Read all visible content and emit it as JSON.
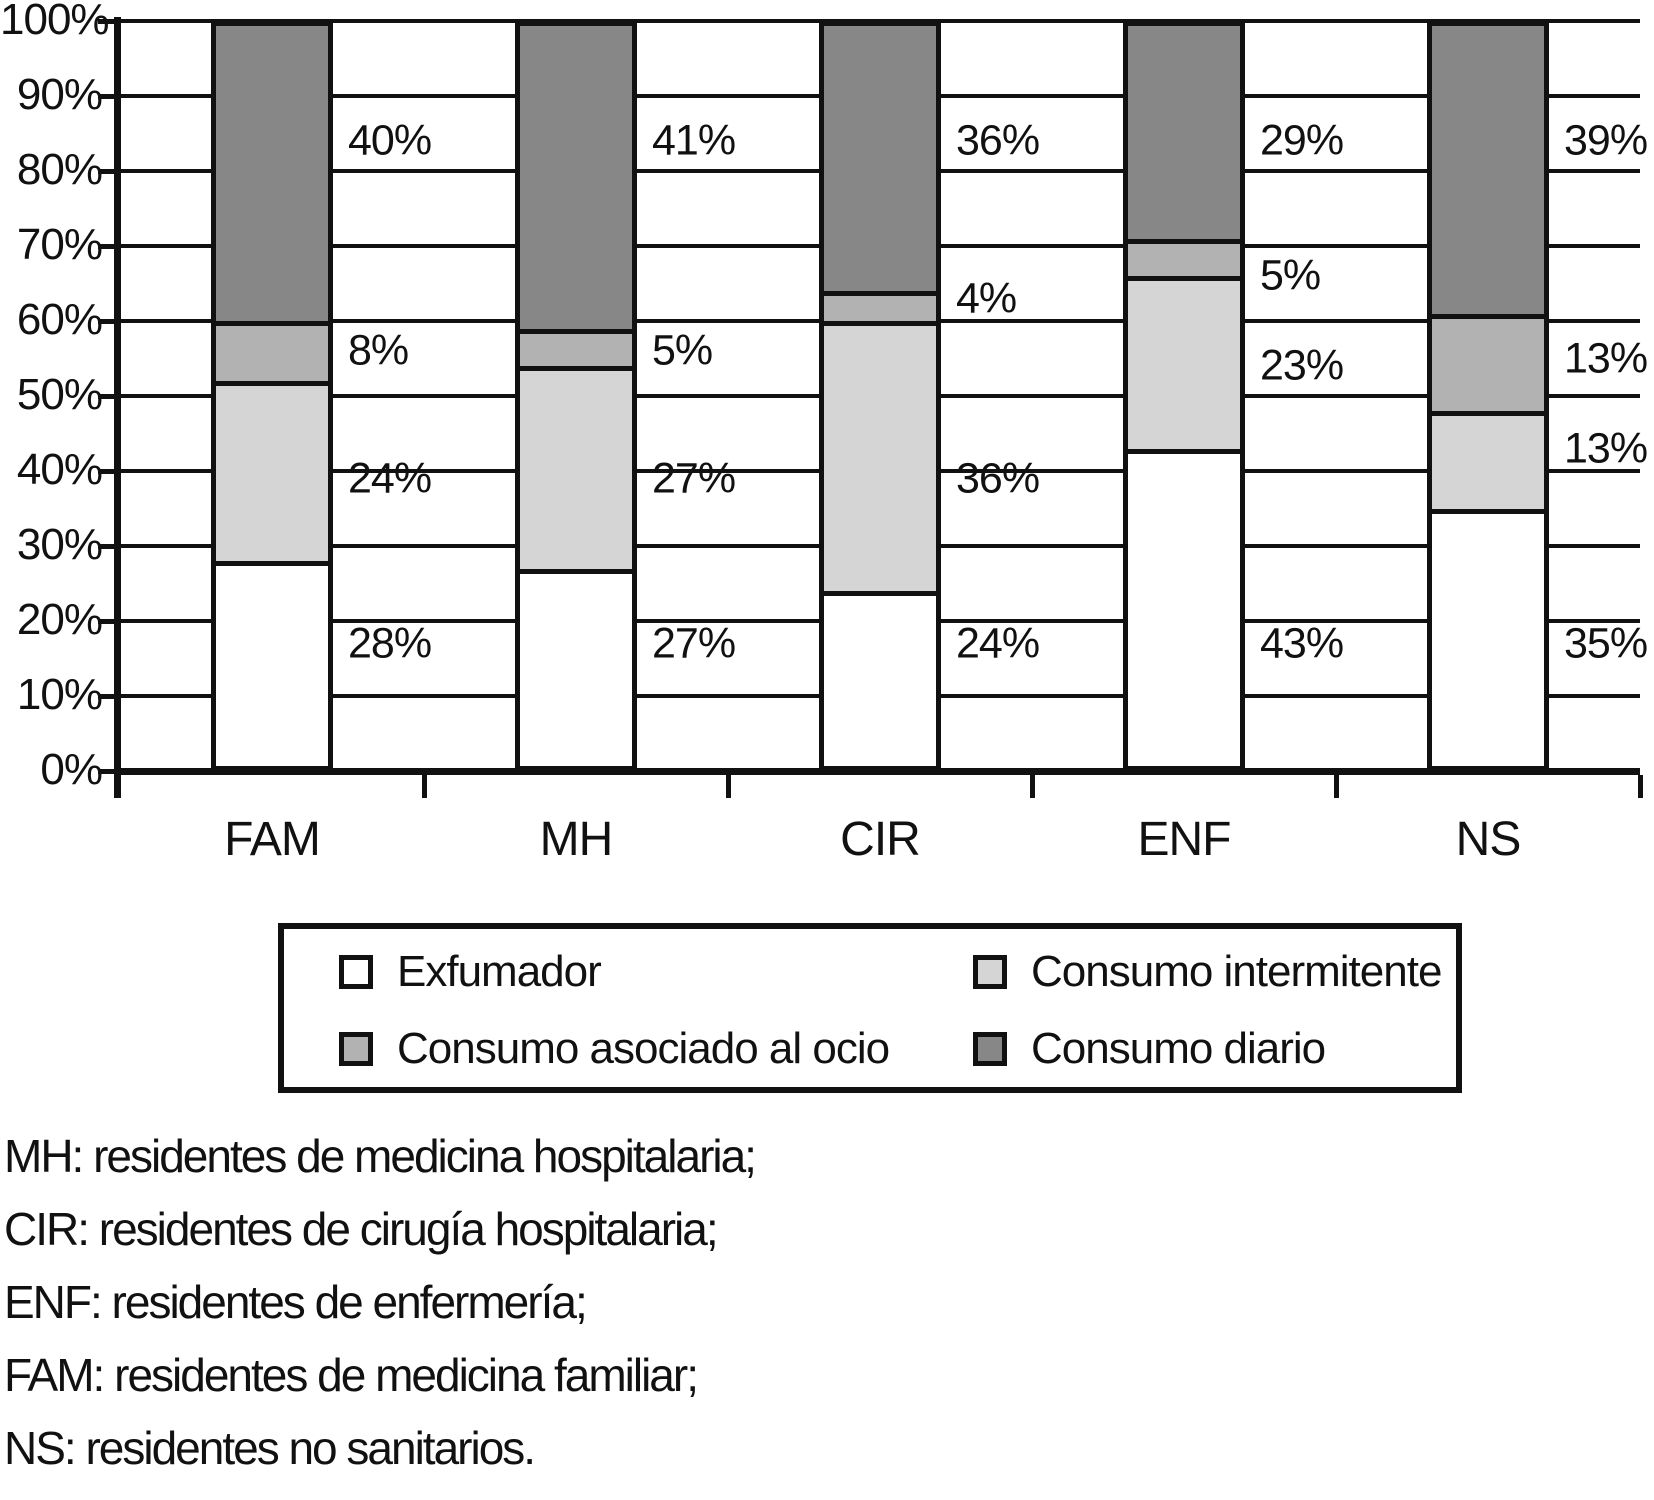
{
  "chart_data": {
    "type": "bar",
    "variant": "stacked-100-percent",
    "title": "",
    "xlabel": "",
    "ylabel": "",
    "grid": true,
    "legend_position": "bottom",
    "categories": [
      "FAM",
      "MH",
      "CIR",
      "ENF",
      "NS"
    ],
    "series": [
      {
        "key": "exfumador",
        "name": "Exfumador",
        "color": "#ffffff",
        "values": [
          28,
          27,
          24,
          43,
          35
        ]
      },
      {
        "key": "consumo-intermitente",
        "name": "Consumo intermitente",
        "color": "#d5d5d5",
        "values": [
          24,
          27,
          36,
          23,
          13
        ]
      },
      {
        "key": "consumo-asociado-al-ocio",
        "name": "Consumo asociado al ocio",
        "color": "#b2b2b2",
        "values": [
          8,
          5,
          4,
          5,
          13
        ]
      },
      {
        "key": "consumo-diario",
        "name": "Consumo diario",
        "color": "#878787",
        "values": [
          40,
          41,
          36,
          29,
          39
        ]
      }
    ],
    "y_axis": {
      "min": 0,
      "max": 100,
      "step": 10,
      "tick_labels": [
        "0%",
        "10%",
        "20%",
        "30%",
        "40%",
        "50%",
        "60%",
        "70%",
        "80%",
        "90%",
        "100%"
      ]
    },
    "data_labels": {
      "FAM": [
        {
          "text": "40%",
          "y": 84
        },
        {
          "text": "8%",
          "y": 56
        },
        {
          "text": "24%",
          "y": 39
        },
        {
          "text": "28%",
          "y": 17
        }
      ],
      "MH": [
        {
          "text": "41%",
          "y": 84
        },
        {
          "text": "5%",
          "y": 56
        },
        {
          "text": "27%",
          "y": 39
        },
        {
          "text": "27%",
          "y": 17
        }
      ],
      "CIR": [
        {
          "text": "36%",
          "y": 84
        },
        {
          "text": "4%",
          "y": 63
        },
        {
          "text": "36%",
          "y": 39
        },
        {
          "text": "24%",
          "y": 17
        }
      ],
      "ENF": [
        {
          "text": "29%",
          "y": 84
        },
        {
          "text": "5%",
          "y": 66
        },
        {
          "text": "23%",
          "y": 54
        },
        {
          "text": "43%",
          "y": 17
        }
      ],
      "NS": [
        {
          "text": "39%",
          "y": 84
        },
        {
          "text": "13%",
          "y": 55
        },
        {
          "text": "13%",
          "y": 43
        },
        {
          "text": "35%",
          "y": 17
        }
      ]
    }
  },
  "legend": {
    "entries": [
      {
        "label": "Exfumador",
        "color": "#ffffff"
      },
      {
        "label": "Consumo intermitente",
        "color": "#d5d5d5"
      },
      {
        "label": "Consumo asociado al ocio",
        "color": "#b2b2b2"
      },
      {
        "label": "Consumo diario",
        "color": "#878787"
      }
    ]
  },
  "footnotes": [
    "MH: residentes de medicina hospitalaria;",
    "CIR: residentes de cirugía hospitalaria;",
    "ENF: residentes de enfermería;",
    "FAM: residentes de medicina familiar;",
    "NS: residentes no sanitarios."
  ],
  "colors": {
    "line": "#111111",
    "background": "#ffffff"
  }
}
